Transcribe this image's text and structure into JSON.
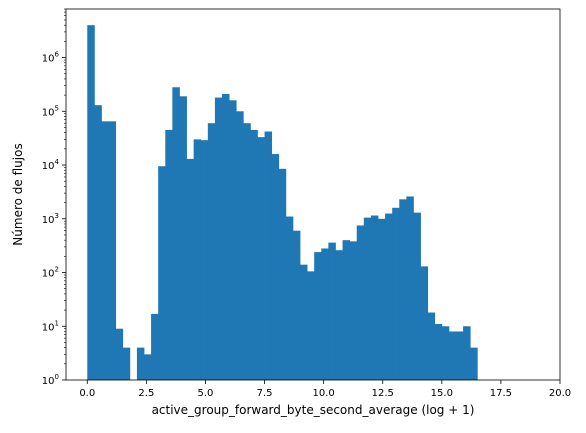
{
  "chart_data": {
    "type": "bar",
    "subtype": "histogram",
    "title": "",
    "xlabel": "active_group_forward_byte_second_average (log + 1)",
    "ylabel": "Número de flujos",
    "xlim": [
      -0.9,
      20.0
    ],
    "ylim": [
      1,
      8000000
    ],
    "y_scale": "log",
    "grid": false,
    "bar_color": "#1f77b4",
    "x_ticks": [
      {
        "value": 0.0,
        "label": "0.0"
      },
      {
        "value": 2.5,
        "label": "2.5"
      },
      {
        "value": 5.0,
        "label": "5.0"
      },
      {
        "value": 7.5,
        "label": "7.5"
      },
      {
        "value": 10.0,
        "label": "10.0"
      },
      {
        "value": 12.5,
        "label": "12.5"
      },
      {
        "value": 15.0,
        "label": "15.0"
      },
      {
        "value": 17.5,
        "label": "17.5"
      },
      {
        "value": 20.0,
        "label": "20.0"
      }
    ],
    "y_ticks": [
      {
        "value": 1,
        "base": "10",
        "exp": "0"
      },
      {
        "value": 10,
        "base": "10",
        "exp": "1"
      },
      {
        "value": 100,
        "base": "10",
        "exp": "2"
      },
      {
        "value": 1000,
        "base": "10",
        "exp": "3"
      },
      {
        "value": 10000,
        "base": "10",
        "exp": "4"
      },
      {
        "value": 100000,
        "base": "10",
        "exp": "5"
      },
      {
        "value": 1000000,
        "base": "10",
        "exp": "6"
      }
    ],
    "bin_start": 0.0,
    "bin_width": 0.3,
    "counts": [
      4000000,
      130000,
      65000,
      65000,
      9,
      4,
      0,
      4,
      3,
      17,
      9500,
      45000,
      280000,
      190000,
      13000,
      30000,
      29000,
      60000,
      180000,
      210000,
      160000,
      100000,
      60000,
      45000,
      33000,
      42000,
      16000,
      8500,
      1100,
      600,
      140,
      105,
      240,
      280,
      360,
      260,
      400,
      380,
      750,
      1050,
      1150,
      1000,
      1250,
      1600,
      2300,
      2600,
      1300,
      130,
      18,
      11,
      10,
      8,
      8,
      10,
      4
    ]
  }
}
